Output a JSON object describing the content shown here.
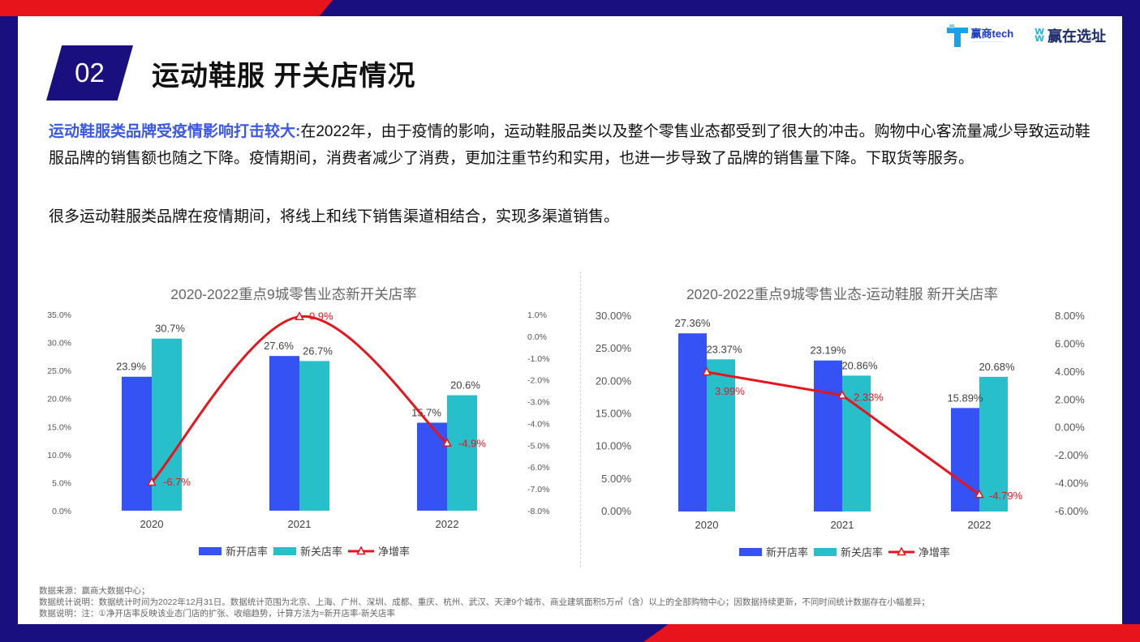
{
  "header": {
    "section_number": "02",
    "title": "运动鞋服 开关店情况",
    "logo_left": "赢商tech",
    "logo_right": "赢在选址"
  },
  "intro": {
    "highlight": "运动鞋服类品牌受疫情影响打击较大:",
    "text": "在2022年，由于疫情的影响，运动鞋服品类以及整个零售业态都受到了很大的冲击。购物中心客流量减少导致运动鞋服品牌的销售额也随之下降。疫情期间，消费者减少了消费，更加注重节约和实用，也进一步导致了品牌的销售量下降。下取货等服务。",
    "line2": "很多运动鞋服类品牌在疫情期间，将线上和线下销售渠道相结合，实现多渠道销售。"
  },
  "colors": {
    "open": "#3553f5",
    "close": "#26bfca",
    "net": "#e8141c",
    "accent": "#3b59e6",
    "navy": "#1a0f7e"
  },
  "chart_data": [
    {
      "type": "bar",
      "title": "2020-2022重点9城零售业态新开关店率",
      "categories": [
        "2020",
        "2021",
        "2022"
      ],
      "series": [
        {
          "name": "新开店率",
          "axis": "left",
          "values": [
            23.9,
            27.6,
            15.7
          ],
          "labels": [
            "23.9%",
            "27.6%",
            "15.7%"
          ]
        },
        {
          "name": "新关店率",
          "axis": "left",
          "values": [
            30.7,
            26.7,
            20.6
          ],
          "labels": [
            "30.7%",
            "26.7%",
            "20.6%"
          ]
        },
        {
          "name": "净增率",
          "type": "line",
          "axis": "right",
          "values": [
            -6.7,
            0.9,
            -4.9
          ],
          "labels": [
            "-6.7%",
            "0.9%",
            "-4.9%"
          ]
        }
      ],
      "ylim": [
        0,
        35
      ],
      "y2lim": [
        -8,
        1
      ],
      "yticks": [
        "0.0%",
        "5.0%",
        "10.0%",
        "15.0%",
        "20.0%",
        "25.0%",
        "30.0%",
        "35.0%"
      ],
      "y2ticks": [
        "-8.0%",
        "-7.0%",
        "-6.0%",
        "-5.0%",
        "-4.0%",
        "-3.0%",
        "-2.0%",
        "-1.0%",
        "0.0%",
        "1.0%"
      ],
      "legend_position": "bottom",
      "smooth_line": true
    },
    {
      "type": "bar",
      "title": "2020-2022重点9城零售业态-运动鞋服 新开关店率",
      "categories": [
        "2020",
        "2021",
        "2022"
      ],
      "series": [
        {
          "name": "新开店率",
          "axis": "left",
          "values": [
            27.36,
            23.19,
            15.89
          ],
          "labels": [
            "27.36%",
            "23.19%",
            "15.89%"
          ]
        },
        {
          "name": "新关店率",
          "axis": "left",
          "values": [
            23.37,
            20.86,
            20.68
          ],
          "labels": [
            "23.37%",
            "20.86%",
            "20.68%"
          ]
        },
        {
          "name": "净增率",
          "type": "line",
          "axis": "right",
          "values": [
            3.99,
            2.33,
            -4.79
          ],
          "labels": [
            "3.99%",
            "2.33%",
            "-4.79%"
          ]
        }
      ],
      "ylim": [
        0,
        30
      ],
      "y2lim": [
        -6,
        8
      ],
      "yticks": [
        "0.00%",
        "5.00%",
        "10.00%",
        "15.00%",
        "20.00%",
        "25.00%",
        "30.00%"
      ],
      "y2ticks": [
        "-6.00%",
        "-4.00%",
        "-2.00%",
        "0.00%",
        "2.00%",
        "4.00%",
        "6.00%",
        "8.00%"
      ],
      "legend_position": "bottom",
      "smooth_line": false
    }
  ],
  "footnotes": [
    "数据来源：赢商大数据中心；",
    "数据统计说明：数据统计时间为2022年12月31日。数据统计范围为北京、上海、广州、深圳、成都、重庆、杭州、武汉、天津9个城市、商业建筑面积5万㎡（含）以上的全部购物中心；因数据持续更新，不同时间统计数据存在小幅差异；",
    "数据说明：注：①净开店率反映该业态门店的扩张、收缩趋势，计算方法为=新开店率-新关店率"
  ]
}
